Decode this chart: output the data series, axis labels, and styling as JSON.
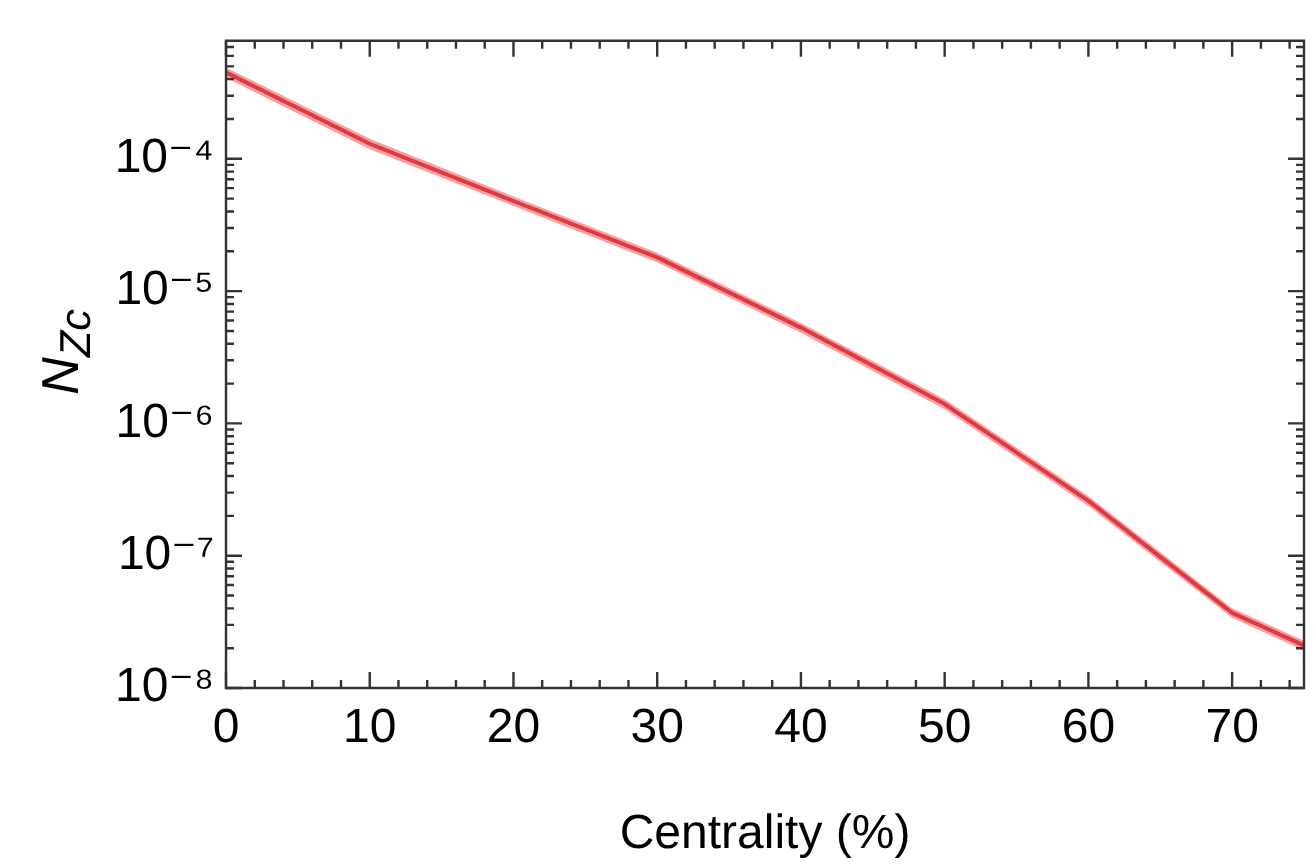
{
  "chart_data": {
    "type": "line",
    "xlabel": "Centrality (%)",
    "ylabel": "N$_{Z}$$_{c}$",
    "log": "y",
    "grid": false,
    "legend": false,
    "marker": "none",
    "line_style": "solid",
    "x": [
      0,
      10,
      20,
      30,
      40,
      50,
      60,
      70,
      75
    ],
    "series": [
      {
        "color": "#e8383d",
        "values": [
          0.00045,
          0.00013,
          4.8e-05,
          1.8e-05,
          5.3e-06,
          1.4e-06,
          2.6e-07,
          3.7e-08,
          2.1e-08
        ],
        "lower": [
          0.00041,
          0.000118,
          4.4e-05,
          1.65e-05,
          4.85e-06,
          1.28e-06,
          2.38e-07,
          3.4e-08,
          1.92e-08
        ],
        "upper": [
          0.00049,
          0.000142,
          5.2e-05,
          1.95e-05,
          5.75e-06,
          1.52e-06,
          2.82e-07,
          4e-08,
          2.28e-08
        ]
      }
    ],
    "xlim": [
      0,
      75
    ],
    "ylim": [
      1e-08,
      0.00078
    ],
    "xticks": [
      0,
      {
        "value": 2,
        "label": null
      },
      {
        "value": 4,
        "label": null
      },
      {
        "value": 6,
        "label": null
      },
      {
        "value": 8,
        "label": null
      },
      10,
      {
        "value": 12,
        "label": null
      },
      {
        "value": 14,
        "label": null
      },
      {
        "value": 16,
        "label": null
      },
      {
        "value": 18,
        "label": null
      },
      20,
      {
        "value": 22,
        "label": null
      },
      {
        "value": 24,
        "label": null
      },
      {
        "value": 26,
        "label": null
      },
      {
        "value": 28,
        "label": null
      },
      30,
      {
        "value": 32,
        "label": null
      },
      {
        "value": 34,
        "label": null
      },
      {
        "value": 36,
        "label": null
      },
      {
        "value": 38,
        "label": null
      },
      40,
      {
        "value": 42,
        "label": null
      },
      {
        "value": 44,
        "label": null
      },
      {
        "value": 46,
        "label": null
      },
      {
        "value": 48,
        "label": null
      },
      50,
      {
        "value": 52,
        "label": null
      },
      {
        "value": 54,
        "label": null
      },
      {
        "value": 56,
        "label": null
      },
      {
        "value": 58,
        "label": null
      },
      60,
      {
        "value": 62,
        "label": null
      },
      {
        "value": 64,
        "label": null
      },
      {
        "value": 66,
        "label": null
      },
      {
        "value": 68,
        "label": null
      },
      70,
      {
        "value": 72,
        "label": null
      },
      {
        "value": 74,
        "label": null
      }
    ],
    "yticks": [
      {
        "value": 1e-08,
        "label": "10⁻⁸"
      },
      {
        "value": 2e-08,
        "label": null
      },
      {
        "value": 3e-08,
        "label": null
      },
      {
        "value": 4e-08,
        "label": null
      },
      {
        "value": 5e-08,
        "label": null
      },
      {
        "value": 6e-08,
        "label": null
      },
      {
        "value": 7e-08,
        "label": null
      },
      {
        "value": 8e-08,
        "label": null
      },
      {
        "value": 9e-08,
        "label": null
      },
      {
        "value": 1e-07,
        "label": "10⁻⁷"
      },
      {
        "value": 2e-07,
        "label": null
      },
      {
        "value": 3e-07,
        "label": null
      },
      {
        "value": 4e-07,
        "label": null
      },
      {
        "value": 5e-07,
        "label": null
      },
      {
        "value": 6e-07,
        "label": null
      },
      {
        "value": 7e-07,
        "label": null
      },
      {
        "value": 8e-07,
        "label": null
      },
      {
        "value": 9e-07,
        "label": null
      },
      {
        "value": 1e-06,
        "label": "10⁻⁶"
      },
      {
        "value": 2e-06,
        "label": null
      },
      {
        "value": 3e-06,
        "label": null
      },
      {
        "value": 4e-06,
        "label": null
      },
      {
        "value": 5e-06,
        "label": null
      },
      {
        "value": 6e-06,
        "label": null
      },
      {
        "value": 7e-06,
        "label": null
      },
      {
        "value": 8e-06,
        "label": null
      },
      {
        "value": 9e-06,
        "label": null
      },
      {
        "value": 1e-05,
        "label": "10⁻⁵"
      },
      {
        "value": 2e-05,
        "label": null
      },
      {
        "value": 3e-05,
        "label": null
      },
      {
        "value": 4e-05,
        "label": null
      },
      {
        "value": 5e-05,
        "label": null
      },
      {
        "value": 6e-05,
        "label": null
      },
      {
        "value": 7e-05,
        "label": null
      },
      {
        "value": 8e-05,
        "label": null
      },
      {
        "value": 9e-05,
        "label": null
      },
      {
        "value": 0.0001,
        "label": "10⁻⁴"
      },
      {
        "value": 0.0002,
        "label": null
      },
      {
        "value": 0.0003,
        "label": null
      },
      {
        "value": 0.0004,
        "label": null
      },
      {
        "value": 0.0005,
        "label": null
      },
      {
        "value": 0.0006,
        "label": null
      },
      {
        "value": 0.0007,
        "label": null
      }
    ]
  }
}
